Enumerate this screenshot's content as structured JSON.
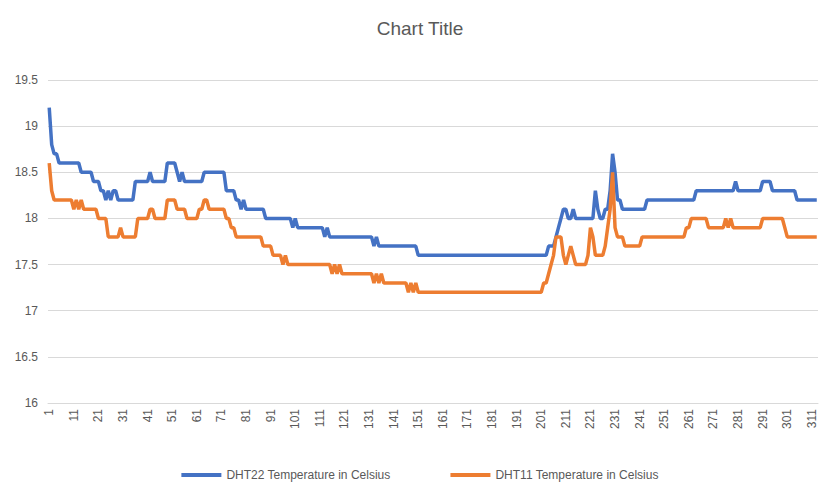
{
  "chart_data": {
    "type": "line",
    "title": "Chart Title",
    "categories": [
      "1",
      null,
      null,
      null,
      null,
      null,
      null,
      null,
      null,
      null,
      "11",
      null,
      null,
      null,
      null,
      null,
      null,
      null,
      null,
      null,
      "21",
      null,
      null,
      null,
      null,
      null,
      null,
      null,
      null,
      null,
      "31",
      null,
      null,
      null,
      null,
      null,
      null,
      null,
      null,
      null,
      "41",
      null,
      null,
      null,
      null,
      null,
      null,
      null,
      null,
      null,
      "51",
      null,
      null,
      null,
      null,
      null,
      null,
      null,
      null,
      null,
      "61",
      null,
      null,
      null,
      null,
      null,
      null,
      null,
      null,
      null,
      "71",
      null,
      null,
      null,
      null,
      null,
      null,
      null,
      null,
      null,
      "81",
      null,
      null,
      null,
      null,
      null,
      null,
      null,
      null,
      null,
      "91",
      null,
      null,
      null,
      null,
      null,
      null,
      null,
      null,
      null,
      "101",
      null,
      null,
      null,
      null,
      null,
      null,
      null,
      null,
      null,
      "111",
      null,
      null,
      null,
      null,
      null,
      null,
      null,
      null,
      null,
      "121",
      null,
      null,
      null,
      null,
      null,
      null,
      null,
      null,
      null,
      "131",
      null,
      null,
      null,
      null,
      null,
      null,
      null,
      null,
      null,
      "141",
      null,
      null,
      null,
      null,
      null,
      null,
      null,
      null,
      null,
      "151",
      null,
      null,
      null,
      null,
      null,
      null,
      null,
      null,
      null,
      "161",
      null,
      null,
      null,
      null,
      null,
      null,
      null,
      null,
      null,
      "171",
      null,
      null,
      null,
      null,
      null,
      null,
      null,
      null,
      null,
      "181",
      null,
      null,
      null,
      null,
      null,
      null,
      null,
      null,
      null,
      "191",
      null,
      null,
      null,
      null,
      null,
      null,
      null,
      null,
      null,
      "201",
      null,
      null,
      null,
      null,
      null,
      null,
      null,
      null,
      null,
      "211",
      null,
      null,
      null,
      null,
      null,
      null,
      null,
      null,
      null,
      "221",
      null,
      null,
      null,
      null,
      null,
      null,
      null,
      null,
      null,
      "231",
      null,
      null,
      null,
      null,
      null,
      null,
      null,
      null,
      null,
      "241",
      null,
      null,
      null,
      null,
      null,
      null,
      null,
      null,
      null,
      "251",
      null,
      null,
      null,
      null,
      null,
      null,
      null,
      null,
      null,
      "261",
      null,
      null,
      null,
      null,
      null,
      null,
      null,
      null,
      null,
      "271",
      null,
      null,
      null,
      null,
      null,
      null,
      null,
      null,
      null,
      "281",
      null,
      null,
      null,
      null,
      null,
      null,
      null,
      null,
      null,
      "291",
      null,
      null,
      null,
      null,
      null,
      null,
      null,
      null,
      null,
      "301",
      null,
      null,
      null,
      null,
      null,
      null,
      null,
      null,
      null,
      "311",
      null,
      null
    ],
    "series": [
      {
        "name": "DHT22 Temperature in Celsius",
        "color": "#4472c4",
        "values": [
          19.2,
          18.8,
          18.7,
          18.7,
          18.6,
          18.6,
          18.6,
          18.6,
          18.6,
          18.6,
          18.6,
          18.6,
          18.6,
          18.5,
          18.5,
          18.5,
          18.5,
          18.5,
          18.4,
          18.4,
          18.4,
          18.3,
          18.3,
          18.2,
          18.3,
          18.2,
          18.3,
          18.3,
          18.2,
          18.2,
          18.2,
          18.2,
          18.2,
          18.2,
          18.2,
          18.4,
          18.4,
          18.4,
          18.4,
          18.4,
          18.4,
          18.5,
          18.4,
          18.4,
          18.4,
          18.4,
          18.4,
          18.4,
          18.6,
          18.6,
          18.6,
          18.6,
          18.5,
          18.4,
          18.5,
          18.4,
          18.4,
          18.4,
          18.4,
          18.4,
          18.4,
          18.4,
          18.4,
          18.5,
          18.5,
          18.5,
          18.5,
          18.5,
          18.5,
          18.5,
          18.5,
          18.5,
          18.3,
          18.3,
          18.3,
          18.3,
          18.2,
          18.2,
          18.1,
          18.2,
          18.1,
          18.1,
          18.1,
          18.1,
          18.1,
          18.1,
          18.1,
          18.1,
          18.0,
          18.0,
          18.0,
          18.0,
          18.0,
          18.0,
          18.0,
          18.0,
          18.0,
          18.0,
          18.0,
          17.9,
          18.0,
          17.9,
          17.9,
          17.9,
          17.9,
          17.9,
          17.9,
          17.9,
          17.9,
          17.9,
          17.9,
          17.9,
          17.8,
          17.9,
          17.8,
          17.8,
          17.8,
          17.8,
          17.8,
          17.8,
          17.8,
          17.8,
          17.8,
          17.8,
          17.8,
          17.8,
          17.8,
          17.8,
          17.8,
          17.8,
          17.8,
          17.8,
          17.7,
          17.8,
          17.7,
          17.7,
          17.7,
          17.7,
          17.7,
          17.7,
          17.7,
          17.7,
          17.7,
          17.7,
          17.7,
          17.7,
          17.7,
          17.7,
          17.7,
          17.7,
          17.6,
          17.6,
          17.6,
          17.6,
          17.6,
          17.6,
          17.6,
          17.6,
          17.6,
          17.6,
          17.6,
          17.6,
          17.6,
          17.6,
          17.6,
          17.6,
          17.6,
          17.6,
          17.6,
          17.6,
          17.6,
          17.6,
          17.6,
          17.6,
          17.6,
          17.6,
          17.6,
          17.6,
          17.6,
          17.6,
          17.6,
          17.6,
          17.6,
          17.6,
          17.6,
          17.6,
          17.6,
          17.6,
          17.6,
          17.6,
          17.6,
          17.6,
          17.6,
          17.6,
          17.6,
          17.6,
          17.6,
          17.6,
          17.6,
          17.6,
          17.6,
          17.6,
          17.6,
          17.7,
          17.7,
          17.7,
          17.8,
          17.9,
          18.0,
          18.1,
          18.1,
          18.0,
          18.0,
          18.1,
          18.0,
          18.0,
          18.0,
          18.0,
          18.0,
          18.0,
          18.0,
          18.0,
          18.3,
          18.1,
          18.0,
          18.0,
          18.1,
          18.1,
          18.3,
          18.7,
          18.5,
          18.2,
          18.2,
          18.1,
          18.1,
          18.1,
          18.1,
          18.1,
          18.1,
          18.1,
          18.1,
          18.1,
          18.1,
          18.2,
          18.2,
          18.2,
          18.2,
          18.2,
          18.2,
          18.2,
          18.2,
          18.2,
          18.2,
          18.2,
          18.2,
          18.2,
          18.2,
          18.2,
          18.2,
          18.2,
          18.2,
          18.2,
          18.2,
          18.3,
          18.3,
          18.3,
          18.3,
          18.3,
          18.3,
          18.3,
          18.3,
          18.3,
          18.3,
          18.3,
          18.3,
          18.3,
          18.3,
          18.3,
          18.3,
          18.4,
          18.3,
          18.3,
          18.3,
          18.3,
          18.3,
          18.3,
          18.3,
          18.3,
          18.3,
          18.3,
          18.4,
          18.4,
          18.4,
          18.4,
          18.3,
          18.3,
          18.3,
          18.3,
          18.3,
          18.3,
          18.3,
          18.3,
          18.3,
          18.3,
          18.2,
          18.2,
          18.2,
          18.2,
          18.2,
          18.2,
          18.2,
          18.2,
          18.2
        ]
      },
      {
        "name": "DHT11 Temperature in Celsius",
        "color": "#ed7d31",
        "values": [
          18.6,
          18.3,
          18.2,
          18.2,
          18.2,
          18.2,
          18.2,
          18.2,
          18.2,
          18.2,
          18.1,
          18.2,
          18.1,
          18.2,
          18.1,
          18.1,
          18.1,
          18.1,
          18.1,
          18.1,
          18.0,
          18.0,
          18.0,
          18.0,
          17.8,
          17.8,
          17.8,
          17.8,
          17.8,
          17.9,
          17.8,
          17.8,
          17.8,
          17.8,
          17.8,
          17.8,
          18.0,
          18.0,
          18.0,
          18.0,
          18.0,
          18.1,
          18.1,
          18.0,
          18.0,
          18.0,
          18.0,
          18.0,
          18.2,
          18.2,
          18.2,
          18.2,
          18.1,
          18.1,
          18.1,
          18.1,
          18.0,
          18.0,
          18.0,
          18.0,
          18.0,
          18.1,
          18.1,
          18.2,
          18.2,
          18.1,
          18.1,
          18.1,
          18.1,
          18.1,
          18.1,
          18.1,
          18.0,
          18.0,
          17.9,
          17.9,
          17.8,
          17.8,
          17.8,
          17.8,
          17.8,
          17.8,
          17.8,
          17.8,
          17.8,
          17.8,
          17.8,
          17.7,
          17.7,
          17.7,
          17.7,
          17.6,
          17.6,
          17.6,
          17.6,
          17.5,
          17.6,
          17.5,
          17.5,
          17.5,
          17.5,
          17.5,
          17.5,
          17.5,
          17.5,
          17.5,
          17.5,
          17.5,
          17.5,
          17.5,
          17.5,
          17.5,
          17.5,
          17.5,
          17.5,
          17.4,
          17.5,
          17.4,
          17.5,
          17.4,
          17.4,
          17.4,
          17.4,
          17.4,
          17.4,
          17.4,
          17.4,
          17.4,
          17.4,
          17.4,
          17.4,
          17.4,
          17.3,
          17.4,
          17.3,
          17.4,
          17.3,
          17.3,
          17.3,
          17.3,
          17.3,
          17.3,
          17.3,
          17.3,
          17.3,
          17.3,
          17.2,
          17.3,
          17.2,
          17.3,
          17.2,
          17.2,
          17.2,
          17.2,
          17.2,
          17.2,
          17.2,
          17.2,
          17.2,
          17.2,
          17.2,
          17.2,
          17.2,
          17.2,
          17.2,
          17.2,
          17.2,
          17.2,
          17.2,
          17.2,
          17.2,
          17.2,
          17.2,
          17.2,
          17.2,
          17.2,
          17.2,
          17.2,
          17.2,
          17.2,
          17.2,
          17.2,
          17.2,
          17.2,
          17.2,
          17.2,
          17.2,
          17.2,
          17.2,
          17.2,
          17.2,
          17.2,
          17.2,
          17.2,
          17.2,
          17.2,
          17.2,
          17.2,
          17.2,
          17.2,
          17.2,
          17.3,
          17.3,
          17.4,
          17.5,
          17.6,
          17.8,
          17.8,
          17.8,
          17.6,
          17.5,
          17.6,
          17.7,
          17.6,
          17.5,
          17.5,
          17.5,
          17.5,
          17.5,
          17.6,
          17.9,
          17.8,
          17.6,
          17.6,
          17.6,
          17.6,
          17.7,
          17.9,
          18.1,
          18.5,
          17.9,
          17.8,
          17.8,
          17.8,
          17.7,
          17.7,
          17.7,
          17.7,
          17.7,
          17.7,
          17.7,
          17.8,
          17.8,
          17.8,
          17.8,
          17.8,
          17.8,
          17.8,
          17.8,
          17.8,
          17.8,
          17.8,
          17.8,
          17.8,
          17.8,
          17.8,
          17.8,
          17.8,
          17.8,
          17.9,
          17.9,
          18.0,
          18.0,
          18.0,
          18.0,
          18.0,
          18.0,
          18.0,
          17.9,
          17.9,
          17.9,
          17.9,
          17.9,
          17.9,
          17.9,
          18.0,
          17.9,
          18.0,
          17.9,
          17.9,
          17.9,
          17.9,
          17.9,
          17.9,
          17.9,
          17.9,
          17.9,
          17.9,
          17.9,
          17.9,
          18.0,
          18.0,
          18.0,
          18.0,
          18.0,
          18.0,
          18.0,
          18.0,
          18.0,
          17.9,
          17.8,
          17.8,
          17.8,
          17.8,
          17.8,
          17.8,
          17.8,
          17.8,
          17.8,
          17.8,
          17.8,
          17.8,
          17.8
        ]
      }
    ],
    "ylim": [
      16,
      19.5
    ],
    "yticks": [
      16,
      16.5,
      17,
      17.5,
      18,
      18.5,
      19,
      19.5
    ],
    "grid": true,
    "legend": "bottom"
  }
}
